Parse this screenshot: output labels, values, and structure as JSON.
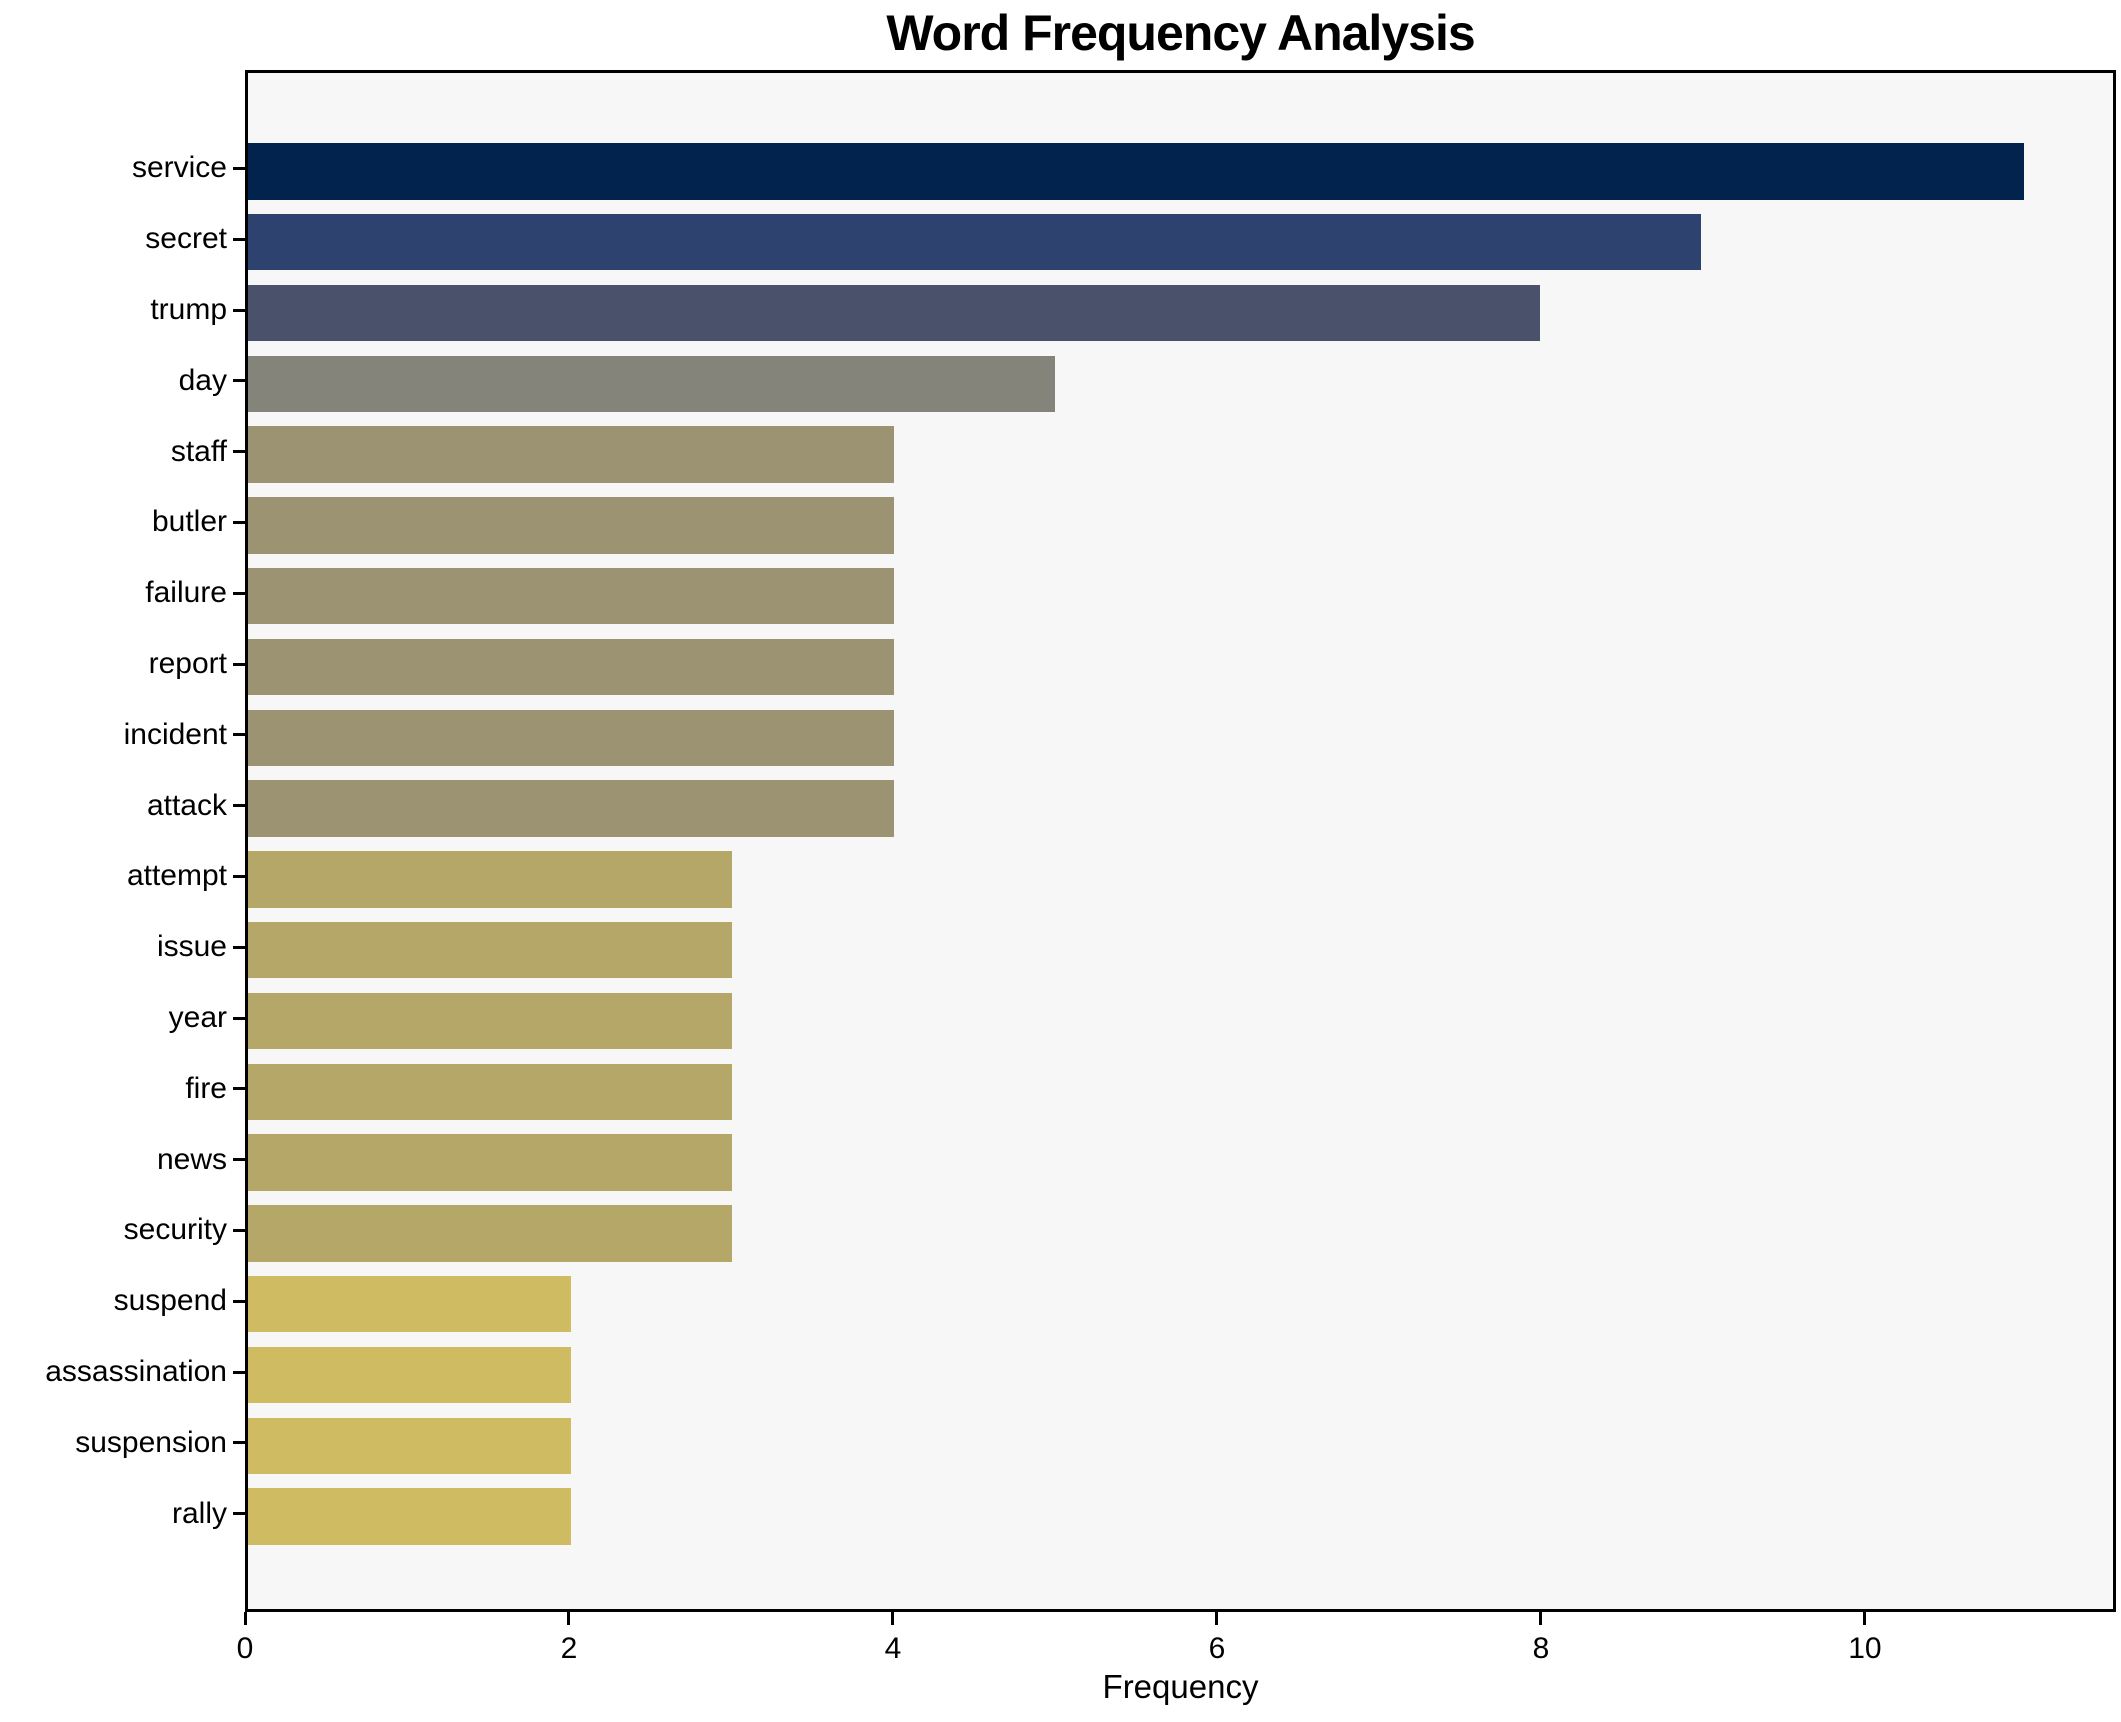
{
  "chart_data": {
    "type": "bar",
    "orientation": "horizontal",
    "title": "Word Frequency Analysis",
    "xlabel": "Frequency",
    "ylabel": "",
    "categories": [
      "service",
      "secret",
      "trump",
      "day",
      "staff",
      "butler",
      "failure",
      "report",
      "incident",
      "attack",
      "attempt",
      "issue",
      "year",
      "fire",
      "news",
      "security",
      "suspend",
      "assassination",
      "suspension",
      "rally"
    ],
    "values": [
      11,
      9,
      8,
      5,
      4,
      4,
      4,
      4,
      4,
      4,
      3,
      3,
      3,
      3,
      3,
      3,
      2,
      2,
      2,
      2
    ],
    "bar_colors": [
      "#03234f",
      "#2e4270",
      "#4a526b",
      "#85847a",
      "#9c9372",
      "#9c9372",
      "#9c9372",
      "#9c9372",
      "#9c9372",
      "#9c9372",
      "#b4a768",
      "#b4a768",
      "#b4a768",
      "#b4a768",
      "#b4a768",
      "#b4a768",
      "#cebb62",
      "#cebb62",
      "#cebb62",
      "#cebb62"
    ],
    "xlim": [
      0,
      11.55
    ],
    "xticks": [
      0,
      2,
      4,
      6,
      8,
      10
    ],
    "grid": false,
    "legend_position": "none",
    "plot_bg": "#f7f7f7",
    "fig_bg": "#ffffff",
    "spine_color": "#000000",
    "text_color": "#000000"
  }
}
